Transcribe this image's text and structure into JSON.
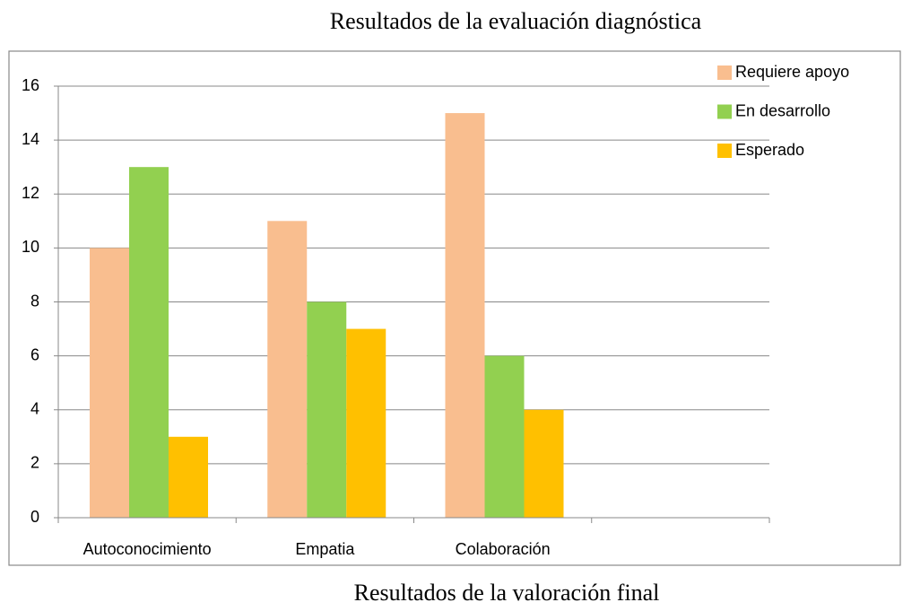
{
  "chart_data": {
    "type": "bar",
    "title": "Resultados de la evaluación diagnóstica",
    "categories": [
      "Autoconocimiento",
      "Empatia",
      "Colaboración",
      null
    ],
    "series": [
      {
        "name": "Requiere apoyo",
        "color": "#f9be8f",
        "values": [
          10,
          11,
          15,
          null
        ]
      },
      {
        "name": "En desarrollo",
        "color": "#92d050",
        "values": [
          13,
          8,
          6,
          null
        ]
      },
      {
        "name": "Esperado",
        "color": "#ffc000",
        "values": [
          3,
          7,
          4,
          null
        ]
      }
    ],
    "ylim": [
      0,
      16
    ],
    "yticks": [
      0,
      2,
      4,
      6,
      8,
      10,
      12,
      14,
      16
    ],
    "grid": true,
    "legend": "top-right"
  },
  "next_title": "Resultados de la valoración final"
}
